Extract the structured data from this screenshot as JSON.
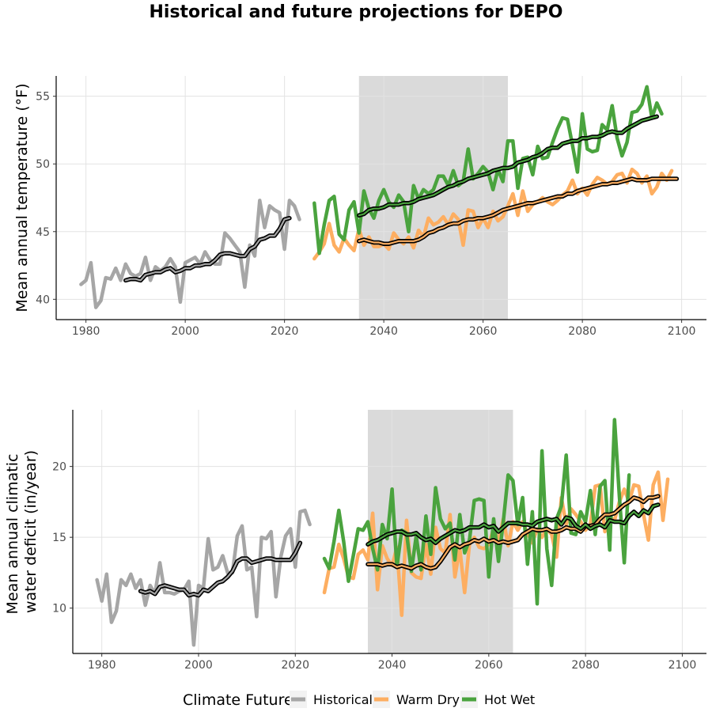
{
  "title": "Historical and future projections for DEPO",
  "colors": {
    "historical": "#a6a6a6",
    "warm_dry": "#fdae61",
    "hot_wet": "#4aa33e",
    "period_band": "#dadada",
    "grid": "#e3e3e3",
    "smooth_outline": "#000000"
  },
  "legend": {
    "title": "Climate Future",
    "items": [
      {
        "label": "Historical",
        "color": "#a6a6a6"
      },
      {
        "label": "Warm Dry",
        "color": "#fdae61"
      },
      {
        "label": "Hot Wet",
        "color": "#4aa33e"
      }
    ]
  },
  "chart_data": [
    {
      "type": "line",
      "ylabel": "Mean annual temperature (°F)",
      "xlabel": "",
      "xlim": [
        1974,
        2105
      ],
      "ylim": [
        38.5,
        56.5
      ],
      "xticks": [
        1980,
        2000,
        2020,
        2040,
        2060,
        2080,
        2100
      ],
      "yticks": [
        40,
        45,
        50,
        55
      ],
      "grid": true,
      "shaded_period": [
        2035,
        2065
      ],
      "series": [
        {
          "name": "Historical",
          "key": "historical",
          "x0": 1979,
          "values": [
            41.1,
            41.4,
            42.7,
            39.4,
            39.9,
            41.6,
            41.5,
            42.3,
            41.4,
            42.6,
            41.9,
            41.7,
            41.9,
            43.1,
            41.4,
            42.4,
            42.1,
            42.4,
            43.0,
            42.4,
            39.8,
            42.7,
            42.9,
            43.1,
            42.6,
            43.5,
            42.9,
            42.6,
            42.6,
            44.9,
            44.5,
            44.0,
            43.5,
            40.9,
            44.0,
            43.2,
            47.3,
            45.3,
            46.9,
            46.6,
            46.4,
            43.7,
            47.3,
            46.9,
            45.9
          ]
        },
        {
          "name": "Warm Dry",
          "key": "warm_dry",
          "x0": 2026,
          "values": [
            43.0,
            43.5,
            44.1,
            45.6,
            44.0,
            43.5,
            44.5,
            44.0,
            43.6,
            45.2,
            44.0,
            44.6,
            43.9,
            43.9,
            44.1,
            43.7,
            44.9,
            44.4,
            44.1,
            44.6,
            43.8,
            45.1,
            44.6,
            46.0,
            45.5,
            45.7,
            46.1,
            45.5,
            46.3,
            45.9,
            44.0,
            46.6,
            46.5,
            45.3,
            46.0,
            45.3,
            46.5,
            45.8,
            46.1,
            46.9,
            47.8,
            46.2,
            48.0,
            46.5,
            47.0,
            47.2,
            47.5,
            47.2,
            47.0,
            47.3,
            47.7,
            48.0,
            48.8,
            47.8,
            48.2,
            47.7,
            48.5,
            49.0,
            48.8,
            48.5,
            48.7,
            49.2,
            49.3,
            48.6,
            49.6,
            49.3,
            48.6,
            49.1,
            47.8,
            48.3,
            49.3,
            48.8,
            49.5
          ]
        },
        {
          "name": "Hot Wet",
          "key": "hot_wet",
          "x0": 2026,
          "values": [
            47.1,
            43.4,
            45.5,
            47.3,
            47.6,
            44.8,
            44.4,
            46.6,
            47.2,
            44.9,
            48.0,
            46.7,
            46.0,
            47.3,
            48.1,
            47.2,
            46.8,
            47.7,
            47.2,
            45.0,
            48.4,
            47.4,
            48.1,
            47.8,
            48.1,
            49.1,
            49.1,
            48.4,
            49.5,
            48.4,
            48.7,
            51.1,
            48.9,
            49.3,
            49.8,
            49.4,
            48.1,
            49.6,
            48.7,
            51.7,
            51.7,
            48.2,
            50.4,
            50.5,
            49.2,
            51.3,
            50.4,
            50.5,
            51.6,
            52.6,
            53.4,
            53.3,
            51.4,
            49.4,
            53.7,
            51.1,
            50.9,
            51.0,
            52.9,
            52.5,
            54.3,
            51.9,
            50.6,
            51.6,
            53.8,
            53.9,
            54.4,
            55.7,
            53.4,
            54.5,
            53.7
          ]
        }
      ],
      "smoothed": [
        {
          "key": "historical",
          "x0": 1988,
          "values": [
            41.4,
            41.5,
            41.5,
            41.4,
            41.8,
            41.9,
            42.0,
            42.0,
            42.2,
            42.3,
            42.0,
            42.1,
            42.3,
            42.3,
            42.5,
            42.5,
            42.6,
            42.6,
            42.9,
            43.3,
            43.4,
            43.4,
            43.3,
            43.2,
            43.2,
            43.7,
            43.9,
            44.4,
            44.5,
            44.7,
            44.7,
            45.2,
            45.9,
            46.0
          ]
        },
        {
          "key": "warm_dry",
          "x0": 2035,
          "values": [
            44.3,
            44.4,
            44.3,
            44.2,
            44.2,
            44.1,
            44.1,
            44.2,
            44.3,
            44.3,
            44.3,
            44.3,
            44.4,
            44.6,
            44.9,
            45.0,
            45.2,
            45.3,
            45.5,
            45.6,
            45.6,
            45.8,
            45.9,
            45.9,
            46.0,
            46.0,
            46.1,
            46.2,
            46.4,
            46.6,
            46.7,
            46.8,
            46.9,
            47.0,
            47.1,
            47.1,
            47.2,
            47.3,
            47.4,
            47.5,
            47.6,
            47.6,
            47.8,
            47.8,
            48.0,
            48.1,
            48.2,
            48.3,
            48.4,
            48.5,
            48.5,
            48.6,
            48.6,
            48.7,
            48.8,
            48.9,
            48.8,
            48.8,
            48.8,
            48.9,
            48.9,
            48.9,
            48.9,
            48.9,
            48.9
          ]
        },
        {
          "key": "hot_wet",
          "x0": 2035,
          "values": [
            46.2,
            46.3,
            46.6,
            46.7,
            46.7,
            46.8,
            47.0,
            47.0,
            47.0,
            47.1,
            47.1,
            47.2,
            47.4,
            47.5,
            47.6,
            47.7,
            47.9,
            48.1,
            48.3,
            48.4,
            48.6,
            48.7,
            48.9,
            49.0,
            49.1,
            49.2,
            49.3,
            49.5,
            49.6,
            49.7,
            49.7,
            49.8,
            50.1,
            50.2,
            50.3,
            50.5,
            50.6,
            50.8,
            51.1,
            51.2,
            51.2,
            51.5,
            51.6,
            51.7,
            51.7,
            51.9,
            51.9,
            52.0,
            52.0,
            52.1,
            52.3,
            52.4,
            52.3,
            52.3,
            52.6,
            52.8,
            53.0,
            53.2,
            53.3,
            53.4,
            53.5
          ]
        }
      ]
    },
    {
      "type": "line",
      "ylabel": "Mean annual climatic water deficit (in/year)",
      "ylabel_lines": [
        "Mean annual climatic",
        "water deficit (in/year)"
      ],
      "xlabel": "",
      "xlim": [
        1974,
        2105
      ],
      "ylim": [
        6.8,
        24.0
      ],
      "xticks": [
        1980,
        2000,
        2020,
        2040,
        2060,
        2080,
        2100
      ],
      "yticks": [
        10,
        15,
        20
      ],
      "grid": true,
      "shaded_period": [
        2035,
        2065
      ],
      "series": [
        {
          "name": "Historical",
          "key": "historical",
          "x0": 1979,
          "values": [
            12.0,
            10.5,
            12.4,
            9.0,
            9.8,
            12.0,
            11.6,
            12.4,
            11.4,
            12.0,
            10.2,
            11.6,
            11.0,
            13.2,
            11.1,
            11.1,
            11.0,
            11.2,
            11.3,
            11.9,
            7.4,
            11.6,
            11.4,
            14.9,
            12.7,
            12.9,
            13.7,
            12.5,
            12.5,
            15.1,
            15.8,
            12.7,
            12.9,
            9.4,
            15.0,
            14.9,
            15.4,
            10.8,
            13.6,
            15.1,
            15.6,
            12.9,
            16.8,
            16.9,
            15.9
          ]
        },
        {
          "name": "Warm Dry",
          "key": "warm_dry",
          "x0": 2026,
          "values": [
            11.1,
            12.8,
            12.9,
            14.5,
            13.5,
            12.2,
            12.1,
            13.8,
            14.1,
            13.4,
            16.7,
            11.3,
            14.4,
            13.5,
            13.0,
            14.3,
            9.5,
            16.2,
            12.5,
            12.2,
            12.1,
            14.5,
            12.4,
            15.7,
            14.2,
            13.9,
            16.6,
            12.2,
            14.2,
            11.1,
            14.5,
            15.0,
            14.3,
            14.2,
            14.5,
            15.6,
            14.7,
            16.3,
            14.4,
            16.1,
            15.5,
            16.1,
            15.3,
            14.6,
            15.6,
            15.0,
            15.6,
            15.2,
            13.6,
            17.8,
            15.9,
            17.0,
            16.6,
            16.1,
            15.5,
            15.9,
            18.6,
            18.7,
            15.4,
            16.4,
            16.2,
            17.5,
            18.4,
            17.5,
            18.7,
            18.6,
            16.6,
            14.8,
            18.7,
            19.6,
            16.2,
            19.1
          ]
        },
        {
          "name": "Hot Wet",
          "key": "hot_wet",
          "x0": 2026,
          "values": [
            13.5,
            12.8,
            14.7,
            16.9,
            14.7,
            11.9,
            13.7,
            15.6,
            15.5,
            16.1,
            14.2,
            12.7,
            15.9,
            14.9,
            18.4,
            12.9,
            15.5,
            15.3,
            12.6,
            15.1,
            12.7,
            16.5,
            13.8,
            18.5,
            16.3,
            15.6,
            16.0,
            13.4,
            16.6,
            13.9,
            14.8,
            17.6,
            17.7,
            17.6,
            12.2,
            16.3,
            13.3,
            16.1,
            19.4,
            19.0,
            15.9,
            17.8,
            13.1,
            16.8,
            10.3,
            21.1,
            14.2,
            11.6,
            16.3,
            17.2,
            20.8,
            15.3,
            15.2,
            16.8,
            16.1,
            18.3,
            15.2,
            18.6,
            19.0,
            14.1,
            23.3,
            17.9,
            13.2,
            19.4
          ]
        }
      ],
      "smoothed": [
        {
          "key": "historical",
          "x0": 1988,
          "values": [
            11.2,
            11.1,
            11.2,
            11.0,
            11.5,
            11.6,
            11.5,
            11.4,
            11.3,
            11.3,
            10.9,
            11.0,
            10.9,
            11.3,
            11.2,
            11.5,
            11.8,
            11.9,
            12.2,
            12.6,
            13.3,
            13.5,
            13.5,
            13.2,
            13.3,
            13.4,
            13.5,
            13.5,
            13.4,
            13.4,
            13.4,
            13.4,
            13.9,
            14.6
          ]
        },
        {
          "key": "warm_dry",
          "x0": 2035,
          "values": [
            13.1,
            13.1,
            13.1,
            13.0,
            13.1,
            13.1,
            12.9,
            13.0,
            12.9,
            12.8,
            13.0,
            13.1,
            12.9,
            12.8,
            12.9,
            13.3,
            13.8,
            14.3,
            14.5,
            14.3,
            14.5,
            14.6,
            14.8,
            14.7,
            14.9,
            14.7,
            14.8,
            14.6,
            14.7,
            14.6,
            14.7,
            14.8,
            15.2,
            15.4,
            15.6,
            15.5,
            15.5,
            15.6,
            15.4,
            15.4,
            15.5,
            15.7,
            15.6,
            15.6,
            15.4,
            15.8,
            15.8,
            15.9,
            16.3,
            16.6,
            16.6,
            16.7,
            17.0,
            17.3,
            17.5,
            17.8,
            17.7,
            17.5,
            17.8,
            17.8,
            17.9
          ]
        },
        {
          "key": "hot_wet",
          "x0": 2035,
          "values": [
            14.5,
            14.7,
            14.8,
            15.0,
            15.2,
            15.3,
            15.4,
            15.4,
            15.2,
            15.2,
            15.3,
            15.0,
            14.8,
            14.9,
            14.6,
            14.9,
            15.1,
            15.3,
            15.5,
            15.4,
            15.5,
            15.7,
            15.7,
            15.7,
            15.9,
            15.7,
            15.8,
            15.4,
            15.7,
            16.0,
            16.0,
            16.0,
            15.9,
            15.9,
            15.8,
            16.1,
            16.2,
            16.3,
            16.2,
            16.3,
            15.9,
            16.4,
            16.3,
            15.8,
            15.6,
            15.9,
            15.6,
            15.8,
            15.9,
            15.7,
            16.2,
            16.1,
            16.1,
            16.0,
            16.5,
            16.8,
            16.5,
            16.9,
            16.7,
            17.2,
            17.3
          ]
        }
      ]
    }
  ]
}
